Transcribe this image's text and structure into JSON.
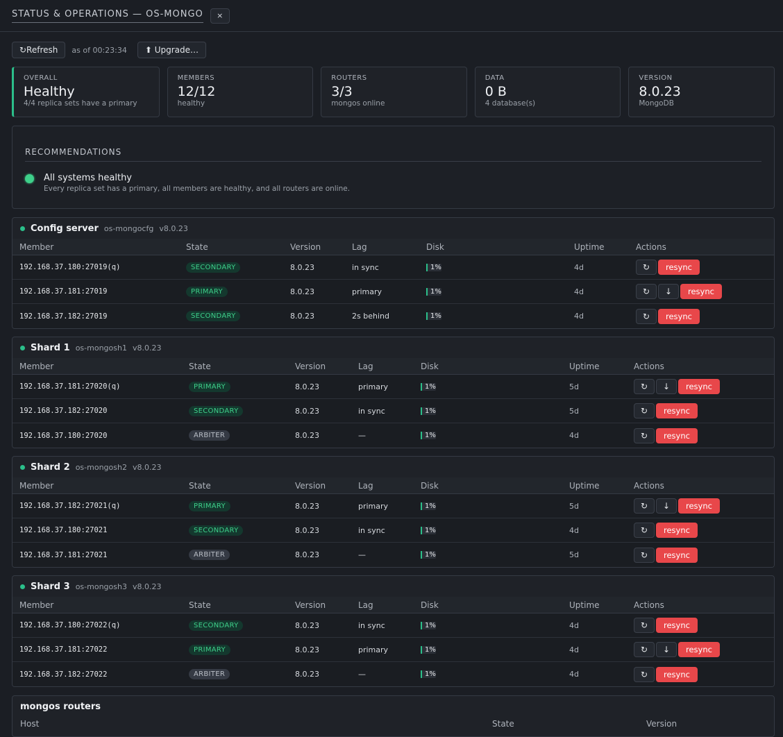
{
  "title": "STATUS & OPERATIONS — OS-MONGO",
  "close": "×",
  "toolbar": {
    "refresh": "↻Refresh",
    "asof": "as of 00:23:34",
    "upgrade": "⬆ Upgrade…"
  },
  "cards": [
    {
      "label": "OVERALL",
      "value": "Healthy",
      "sub": "4/4 replica sets have a primary"
    },
    {
      "label": "MEMBERS",
      "value": "12/12",
      "sub": "healthy"
    },
    {
      "label": "ROUTERS",
      "value": "3/3",
      "sub": "mongos online"
    },
    {
      "label": "DATA",
      "value": "0 B",
      "sub": "4 database(s)"
    },
    {
      "label": "VERSION",
      "value": "8.0.23",
      "sub": "MongoDB"
    }
  ],
  "recommendations": {
    "heading": "RECOMMENDATIONS",
    "title": "All systems healthy",
    "detail": "Every replica set has a primary, all members are healthy, and all routers are online."
  },
  "headers": {
    "member": "Member",
    "state": "State",
    "version": "Version",
    "lag": "Lag",
    "disk": "Disk",
    "uptime": "Uptime",
    "actions": "Actions"
  },
  "action_labels": {
    "restart": "↻",
    "stepdown": "↓",
    "resync": "resync"
  },
  "status_color": "#2bbf8a",
  "sections": [
    {
      "name": "Config server",
      "rs": "os-mongocfg",
      "ver": "v8.0.23",
      "rows": [
        {
          "member": "192.168.37.180:27019(q)",
          "state": "SECONDARY",
          "version": "8.0.23",
          "lag": "in sync",
          "disk": "1%",
          "disk_frac": 0.01,
          "uptime": "4d",
          "step": false
        },
        {
          "member": "192.168.37.181:27019",
          "state": "PRIMARY",
          "version": "8.0.23",
          "lag": "primary",
          "disk": "1%",
          "disk_frac": 0.01,
          "uptime": "4d",
          "step": true
        },
        {
          "member": "192.168.37.182:27019",
          "state": "SECONDARY",
          "version": "8.0.23",
          "lag": "2s behind",
          "disk": "1%",
          "disk_frac": 0.01,
          "uptime": "4d",
          "step": false
        }
      ]
    },
    {
      "name": "Shard 1",
      "rs": "os-mongosh1",
      "ver": "v8.0.23",
      "rows": [
        {
          "member": "192.168.37.181:27020(q)",
          "state": "PRIMARY",
          "version": "8.0.23",
          "lag": "primary",
          "disk": "1%",
          "disk_frac": 0.01,
          "uptime": "5d",
          "step": true
        },
        {
          "member": "192.168.37.182:27020",
          "state": "SECONDARY",
          "version": "8.0.23",
          "lag": "in sync",
          "disk": "1%",
          "disk_frac": 0.01,
          "uptime": "5d",
          "step": false
        },
        {
          "member": "192.168.37.180:27020",
          "state": "ARBITER",
          "version": "8.0.23",
          "lag": "—",
          "disk": "1%",
          "disk_frac": 0.01,
          "uptime": "4d",
          "step": false
        }
      ]
    },
    {
      "name": "Shard 2",
      "rs": "os-mongosh2",
      "ver": "v8.0.23",
      "rows": [
        {
          "member": "192.168.37.182:27021(q)",
          "state": "PRIMARY",
          "version": "8.0.23",
          "lag": "primary",
          "disk": "1%",
          "disk_frac": 0.01,
          "uptime": "5d",
          "step": true
        },
        {
          "member": "192.168.37.180:27021",
          "state": "SECONDARY",
          "version": "8.0.23",
          "lag": "in sync",
          "disk": "1%",
          "disk_frac": 0.01,
          "uptime": "4d",
          "step": false
        },
        {
          "member": "192.168.37.181:27021",
          "state": "ARBITER",
          "version": "8.0.23",
          "lag": "—",
          "disk": "1%",
          "disk_frac": 0.01,
          "uptime": "5d",
          "step": false
        }
      ]
    },
    {
      "name": "Shard 3",
      "rs": "os-mongosh3",
      "ver": "v8.0.23",
      "rows": [
        {
          "member": "192.168.37.180:27022(q)",
          "state": "SECONDARY",
          "version": "8.0.23",
          "lag": "in sync",
          "disk": "1%",
          "disk_frac": 0.01,
          "uptime": "4d",
          "step": false
        },
        {
          "member": "192.168.37.181:27022",
          "state": "PRIMARY",
          "version": "8.0.23",
          "lag": "primary",
          "disk": "1%",
          "disk_frac": 0.01,
          "uptime": "4d",
          "step": true
        },
        {
          "member": "192.168.37.182:27022",
          "state": "ARBITER",
          "version": "8.0.23",
          "lag": "—",
          "disk": "1%",
          "disk_frac": 0.01,
          "uptime": "4d",
          "step": false
        }
      ]
    }
  ],
  "mongos": {
    "title": "mongos routers",
    "host": "Host",
    "state": "State",
    "version": "Version"
  }
}
